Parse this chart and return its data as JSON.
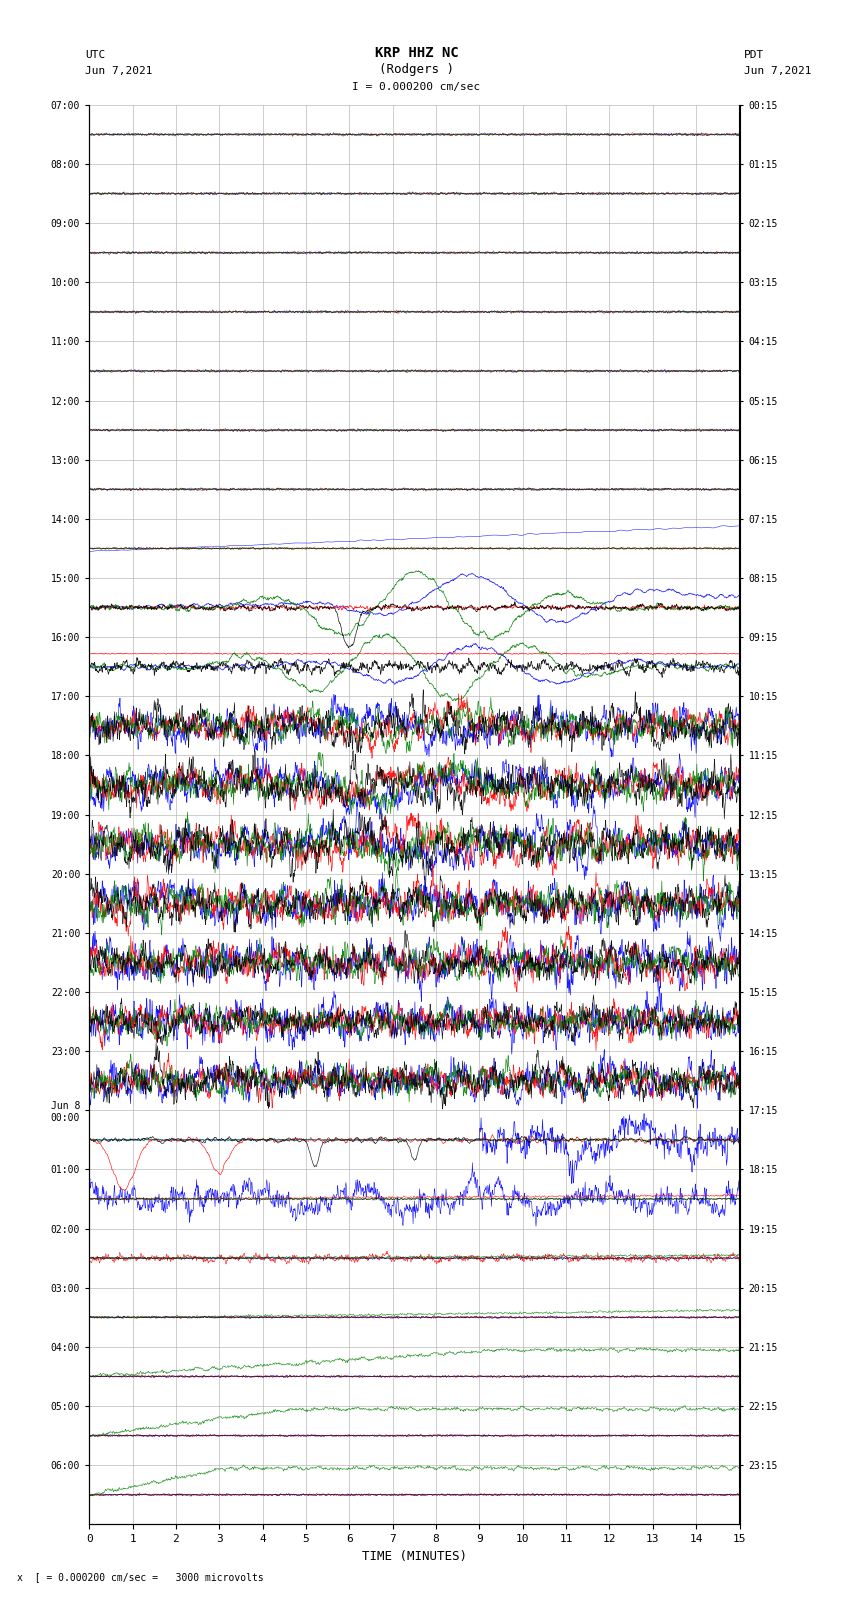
{
  "title_line1": "KRP HHZ NC",
  "title_line2": "(Rodgers )",
  "scale_text": "I = 0.000200 cm/sec",
  "footer_text": "x  [ = 0.000200 cm/sec =   3000 microvolts",
  "xlabel": "TIME (MINUTES)",
  "xlim": [
    0,
    15
  ],
  "xticks": [
    0,
    1,
    2,
    3,
    4,
    5,
    6,
    7,
    8,
    9,
    10,
    11,
    12,
    13,
    14,
    15
  ],
  "utc_times": [
    "07:00",
    "08:00",
    "09:00",
    "10:00",
    "11:00",
    "12:00",
    "13:00",
    "14:00",
    "15:00",
    "16:00",
    "17:00",
    "18:00",
    "19:00",
    "20:00",
    "21:00",
    "22:00",
    "23:00",
    "Jun 8\n00:00",
    "01:00",
    "02:00",
    "03:00",
    "04:00",
    "05:00",
    "06:00"
  ],
  "pdt_times": [
    "00:15",
    "01:15",
    "02:15",
    "03:15",
    "04:15",
    "05:15",
    "06:15",
    "07:15",
    "08:15",
    "09:15",
    "10:15",
    "11:15",
    "12:15",
    "13:15",
    "14:15",
    "15:15",
    "16:15",
    "17:15",
    "18:15",
    "19:15",
    "20:15",
    "21:15",
    "22:15",
    "23:15"
  ],
  "n_rows": 24,
  "bg_color": "#ffffff",
  "grid_color": "#aaaaaa",
  "line_colors": [
    "blue",
    "red",
    "green",
    "black"
  ],
  "figsize": [
    8.5,
    16.13
  ],
  "dpi": 100
}
